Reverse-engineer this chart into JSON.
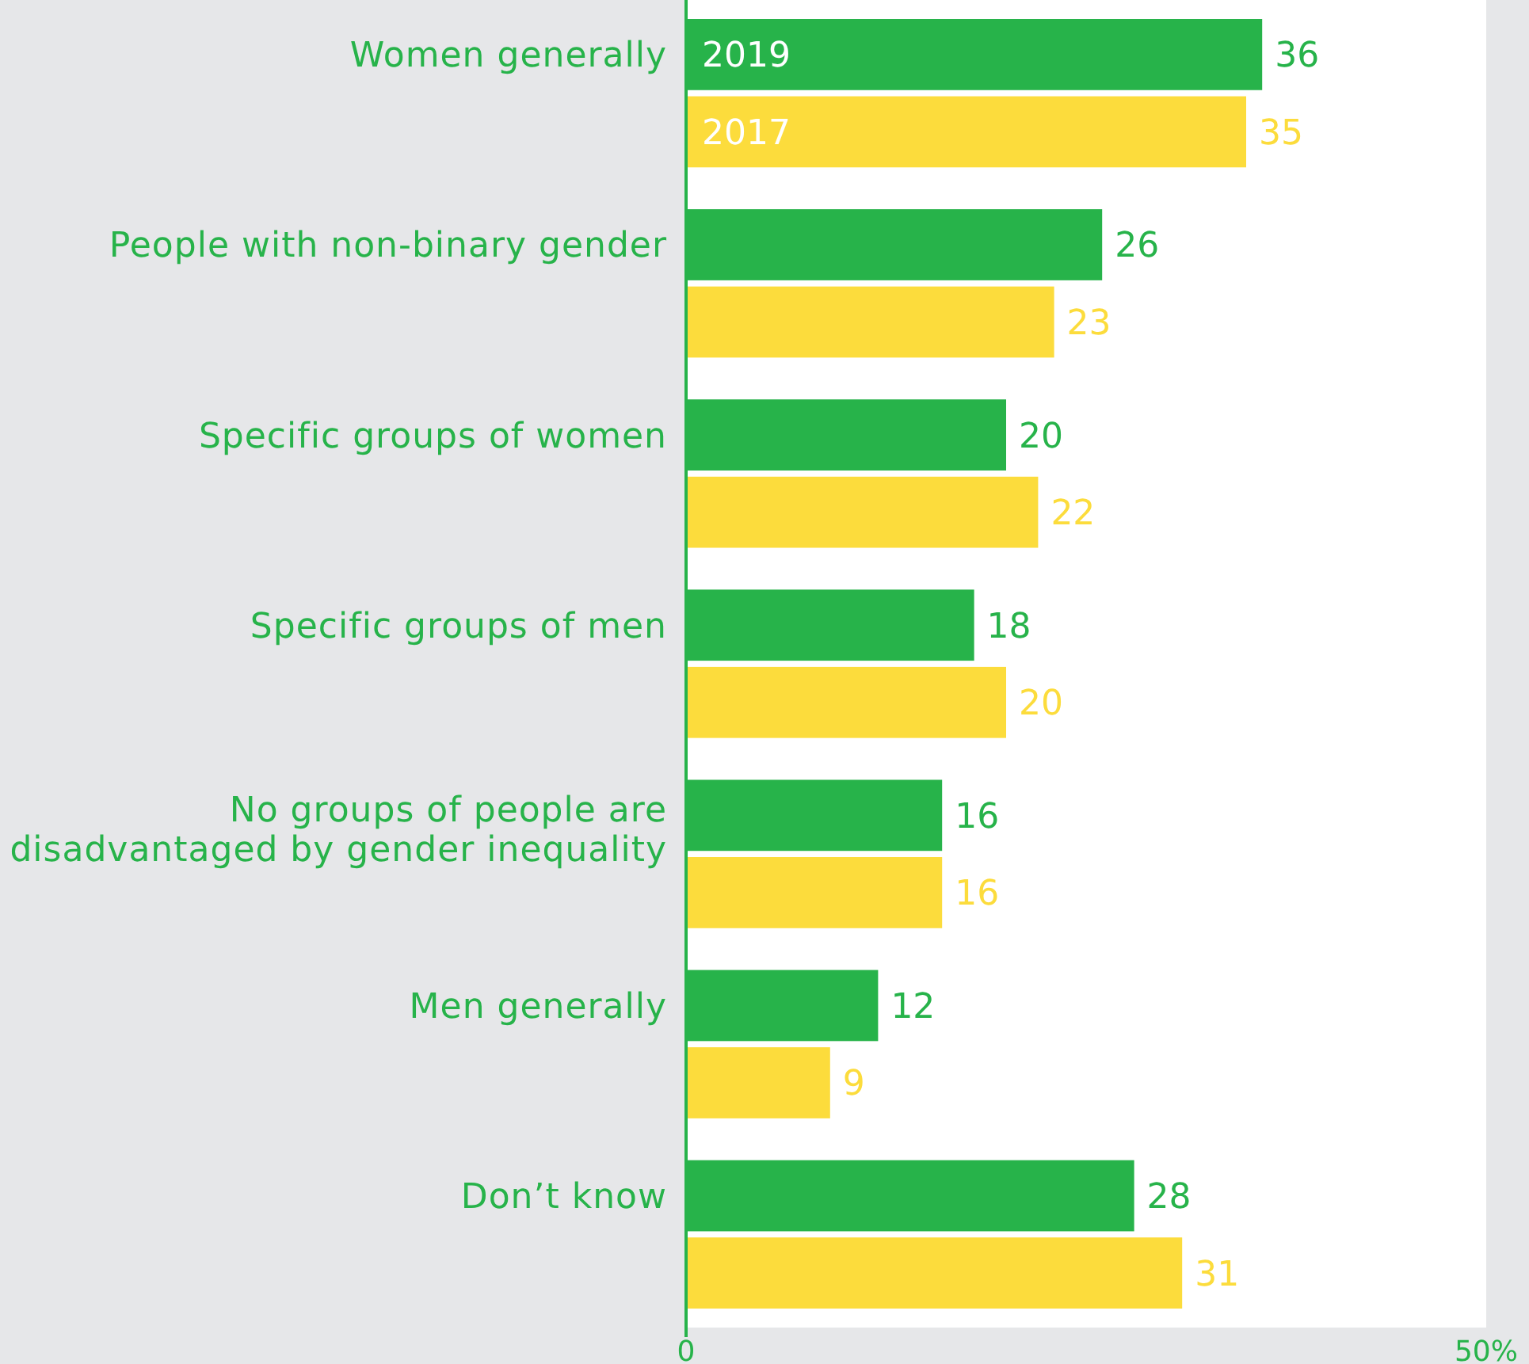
{
  "chart_data": {
    "type": "bar",
    "orientation": "horizontal",
    "categories": [
      "Women generally",
      "People with non-binary gender",
      "Specific groups of women",
      "Specific groups of men",
      "No groups of people are disadvantaged by gender inequality",
      "Men generally",
      "Don’t know"
    ],
    "series": [
      {
        "name": "2019",
        "color": "#27b34a",
        "values": [
          36,
          26,
          20,
          18,
          16,
          12,
          28
        ]
      },
      {
        "name": "2017",
        "color": "#fcdc3c",
        "values": [
          35,
          23,
          22,
          20,
          16,
          9,
          31
        ]
      }
    ],
    "xlim": [
      0,
      50
    ],
    "xticks": [
      0,
      {
        "value": 50,
        "label": "50%"
      }
    ],
    "data_labels": true,
    "legend": false,
    "grid": false
  }
}
